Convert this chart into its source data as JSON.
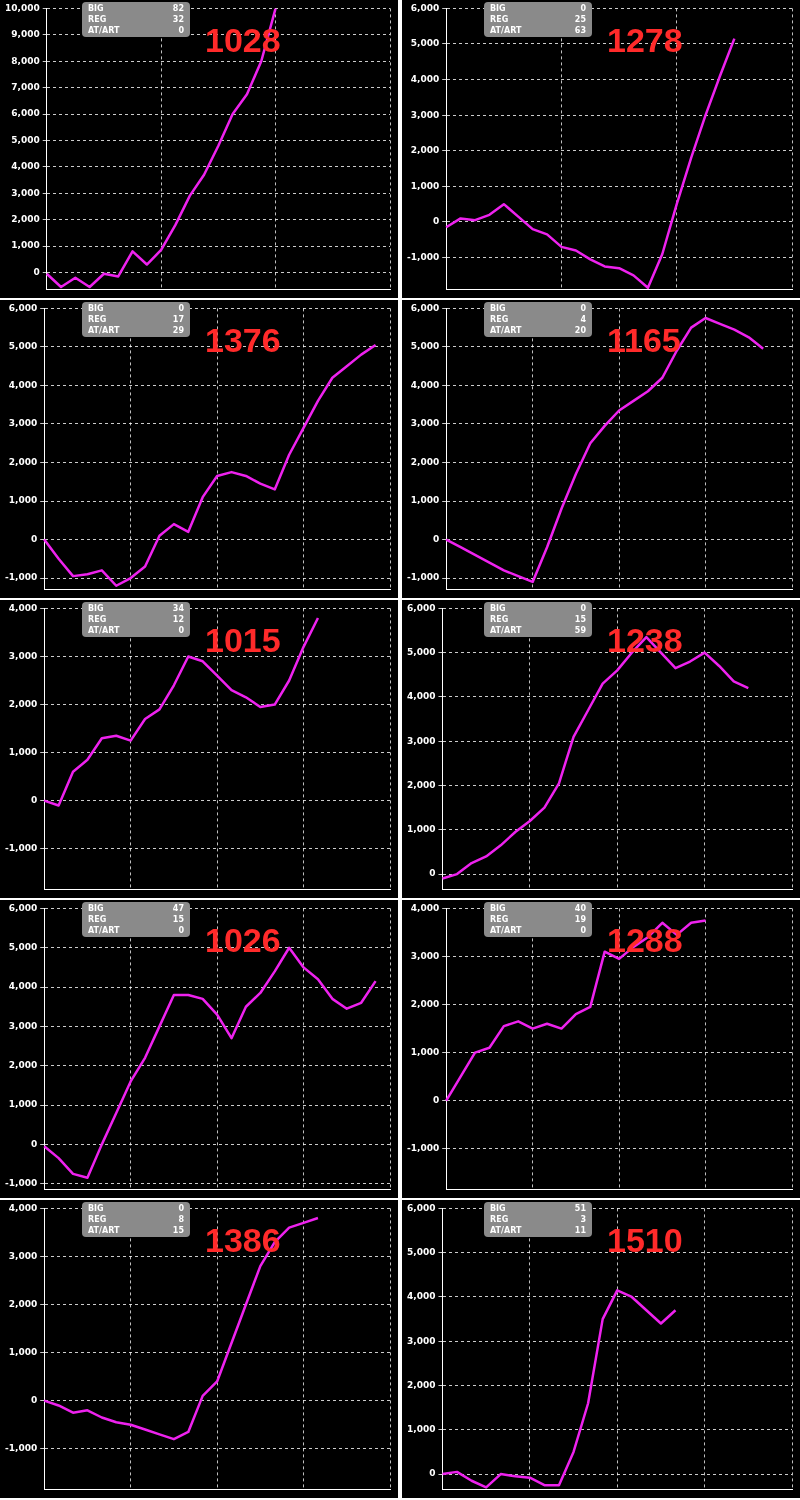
{
  "chart_data": [
    {
      "type": "line",
      "title": "1028",
      "annotations": [
        "BIG",
        "82",
        "REG",
        "32",
        "AT/ART",
        "0"
      ],
      "categories": [
        null,
        null,
        null,
        null,
        null,
        null,
        null,
        null,
        null,
        null,
        null,
        null,
        null,
        null,
        null,
        null,
        null,
        null,
        null,
        null,
        null,
        null,
        null,
        null,
        null
      ],
      "series": [
        {
          "color": "#ee22ee",
          "values": [
            -50,
            -550,
            -200,
            -550,
            -50,
            -150,
            800,
            300,
            850,
            1800,
            2900,
            3700,
            4800,
            6000,
            6750,
            8000,
            10000,
            null,
            null,
            null,
            null,
            null,
            null,
            null,
            null
          ]
        }
      ],
      "ylim": [
        -650,
        10000
      ],
      "yticks": [
        {
          "value": 0,
          "label": "0"
        },
        {
          "value": 1000,
          "label": "1,000"
        },
        {
          "value": 2000,
          "label": "2,000"
        },
        {
          "value": 3000,
          "label": "3,000"
        },
        {
          "value": 4000,
          "label": "4,000"
        },
        {
          "value": 5000,
          "label": "5,000"
        },
        {
          "value": 6000,
          "label": "6,000"
        },
        {
          "value": 7000,
          "label": "7,000"
        },
        {
          "value": 8000,
          "label": "8,000"
        },
        {
          "value": 9000,
          "label": "9,000"
        },
        {
          "value": 10000,
          "label": "10,000"
        }
      ],
      "grid": true,
      "legend": false,
      "marker": "none",
      "tick_labels": "y"
    },
    {
      "type": "line",
      "title": "1278",
      "annotations": [
        "BIG",
        "0",
        "REG",
        "25",
        "AT/ART",
        "63"
      ],
      "categories": [
        null,
        null,
        null,
        null,
        null,
        null,
        null,
        null,
        null,
        null,
        null,
        null,
        null,
        null,
        null,
        null,
        null,
        null,
        null,
        null,
        null,
        null,
        null,
        null,
        null
      ],
      "series": [
        {
          "color": "#ee22ee",
          "values": [
            -150,
            100,
            50,
            200,
            500,
            150,
            -200,
            -350,
            -700,
            -800,
            -1050,
            -1250,
            -1300,
            -1500,
            -1850,
            -900,
            500,
            1800,
            3000,
            4100,
            5150,
            null,
            null,
            null,
            null
          ]
        }
      ],
      "ylim": [
        -1900,
        6000
      ],
      "yticks": [
        {
          "value": -1000,
          "label": "-1,000"
        },
        {
          "value": 0,
          "label": "0"
        },
        {
          "value": 1000,
          "label": "1,000"
        },
        {
          "value": 2000,
          "label": "2,000"
        },
        {
          "value": 3000,
          "label": "3,000"
        },
        {
          "value": 4000,
          "label": "4,000"
        },
        {
          "value": 5000,
          "label": "5,000"
        },
        {
          "value": 6000,
          "label": "6,000"
        }
      ],
      "grid": true,
      "legend": false,
      "marker": "none",
      "tick_labels": "y"
    },
    {
      "type": "line",
      "title": "1376",
      "annotations": [
        "BIG",
        "0",
        "REG",
        "17",
        "AT/ART",
        "29"
      ],
      "categories": [
        null,
        null,
        null,
        null,
        null,
        null,
        null,
        null,
        null,
        null,
        null,
        null,
        null,
        null,
        null,
        null,
        null,
        null,
        null,
        null,
        null,
        null,
        null,
        null,
        null
      ],
      "series": [
        {
          "color": "#ee22ee",
          "values": [
            0,
            -500,
            -950,
            -900,
            -800,
            -1200,
            -1000,
            -700,
            100,
            400,
            200,
            1100,
            1650,
            1750,
            1650,
            1450,
            1300,
            2200,
            2900,
            3600,
            4200,
            4500,
            4800,
            5050,
            null
          ]
        }
      ],
      "ylim": [
        -1300,
        6000
      ],
      "yticks": [
        {
          "value": -1000,
          "label": "-1,000"
        },
        {
          "value": 0,
          "label": "0"
        },
        {
          "value": 1000,
          "label": "1,000"
        },
        {
          "value": 2000,
          "label": "2,000"
        },
        {
          "value": 3000,
          "label": "3,000"
        },
        {
          "value": 4000,
          "label": "4,000"
        },
        {
          "value": 5000,
          "label": "5,000"
        },
        {
          "value": 6000,
          "label": "6,000"
        }
      ],
      "grid": true,
      "legend": false,
      "marker": "none",
      "tick_labels": "y"
    },
    {
      "type": "line",
      "title": "1165",
      "annotations": [
        "BIG",
        "0",
        "REG",
        "4",
        "AT/ART",
        "20"
      ],
      "categories": [
        null,
        null,
        null,
        null,
        null,
        null,
        null,
        null,
        null,
        null,
        null,
        null,
        null,
        null,
        null,
        null,
        null,
        null,
        null,
        null,
        null,
        null,
        null,
        null,
        null
      ],
      "series": [
        {
          "color": "#ee22ee",
          "values": [
            0,
            -200,
            -400,
            -600,
            -800,
            -950,
            -1100,
            -200,
            800,
            1700,
            2500,
            2950,
            3350,
            3600,
            3850,
            4200,
            4900,
            5500,
            5750,
            5600,
            5450,
            5250,
            4950,
            null,
            null
          ]
        }
      ],
      "ylim": [
        -1300,
        6000
      ],
      "yticks": [
        {
          "value": -1000,
          "label": "-1,000"
        },
        {
          "value": 0,
          "label": "0"
        },
        {
          "value": 1000,
          "label": "1,000"
        },
        {
          "value": 2000,
          "label": "2,000"
        },
        {
          "value": 3000,
          "label": "3,000"
        },
        {
          "value": 4000,
          "label": "4,000"
        },
        {
          "value": 5000,
          "label": "5,000"
        },
        {
          "value": 6000,
          "label": "6,000"
        }
      ],
      "grid": true,
      "legend": false,
      "marker": "none",
      "tick_labels": "y"
    },
    {
      "type": "line",
      "title": "1015",
      "annotations": [
        "BIG",
        "34",
        "REG",
        "12",
        "AT/ART",
        "0"
      ],
      "categories": [
        null,
        null,
        null,
        null,
        null,
        null,
        null,
        null,
        null,
        null,
        null,
        null,
        null,
        null,
        null,
        null,
        null,
        null,
        null,
        null,
        null,
        null,
        null,
        null,
        null
      ],
      "series": [
        {
          "color": "#ee22ee",
          "values": [
            0,
            -100,
            600,
            850,
            1300,
            1350,
            1250,
            1700,
            1900,
            2400,
            3000,
            2900,
            2600,
            2300,
            2150,
            1950,
            2000,
            2500,
            3200,
            3800,
            null,
            null,
            null,
            null,
            null
          ]
        }
      ],
      "ylim": [
        -1850,
        4000
      ],
      "yticks": [
        {
          "value": -1000,
          "label": "-1,000"
        },
        {
          "value": 0,
          "label": "0"
        },
        {
          "value": 1000,
          "label": "1,000"
        },
        {
          "value": 2000,
          "label": "2,000"
        },
        {
          "value": 3000,
          "label": "3,000"
        },
        {
          "value": 4000,
          "label": "4,000"
        }
      ],
      "grid": true,
      "legend": false,
      "marker": "none",
      "tick_labels": "y"
    },
    {
      "type": "line",
      "title": "1238",
      "annotations": [
        "BIG",
        "0",
        "REG",
        "15",
        "AT/ART",
        "59"
      ],
      "categories": [
        null,
        null,
        null,
        null,
        null,
        null,
        null,
        null,
        null,
        null,
        null,
        null,
        null,
        null,
        null,
        null,
        null,
        null,
        null,
        null,
        null,
        null,
        null,
        null,
        null
      ],
      "series": [
        {
          "color": "#ee22ee",
          "values": [
            -100,
            0,
            250,
            400,
            650,
            950,
            1200,
            1500,
            2050,
            3100,
            3700,
            4300,
            4600,
            5000,
            5350,
            5000,
            4650,
            4800,
            5000,
            4700,
            4350,
            4200,
            null,
            null,
            null
          ]
        }
      ],
      "ylim": [
        -350,
        6000
      ],
      "yticks": [
        {
          "value": 0,
          "label": "0"
        },
        {
          "value": 1000,
          "label": "1,000"
        },
        {
          "value": 2000,
          "label": "2,000"
        },
        {
          "value": 3000,
          "label": "3,000"
        },
        {
          "value": 4000,
          "label": "4,000"
        },
        {
          "value": 5000,
          "label": "5,000"
        },
        {
          "value": 6000,
          "label": "6,000"
        }
      ],
      "grid": true,
      "legend": false,
      "marker": "none",
      "tick_labels": "y"
    },
    {
      "type": "line",
      "title": "1026",
      "annotations": [
        "BIG",
        "47",
        "REG",
        "15",
        "AT/ART",
        "0"
      ],
      "categories": [
        null,
        null,
        null,
        null,
        null,
        null,
        null,
        null,
        null,
        null,
        null,
        null,
        null,
        null,
        null,
        null,
        null,
        null,
        null,
        null,
        null,
        null,
        null,
        null,
        null
      ],
      "series": [
        {
          "color": "#ee22ee",
          "values": [
            -50,
            -350,
            -750,
            -850,
            0,
            800,
            1600,
            2200,
            3000,
            3800,
            3800,
            3700,
            3300,
            2700,
            3500,
            3850,
            4400,
            5000,
            4500,
            4200,
            3700,
            3450,
            3600,
            4150,
            null
          ]
        }
      ],
      "ylim": [
        -1150,
        6000
      ],
      "yticks": [
        {
          "value": -1000,
          "label": "-1,000"
        },
        {
          "value": 0,
          "label": "0"
        },
        {
          "value": 1000,
          "label": "1,000"
        },
        {
          "value": 2000,
          "label": "2,000"
        },
        {
          "value": 3000,
          "label": "3,000"
        },
        {
          "value": 4000,
          "label": "4,000"
        },
        {
          "value": 5000,
          "label": "5,000"
        },
        {
          "value": 6000,
          "label": "6,000"
        }
      ],
      "grid": true,
      "legend": false,
      "marker": "none",
      "tick_labels": "y"
    },
    {
      "type": "line",
      "title": "1288",
      "annotations": [
        "BIG",
        "40",
        "REG",
        "19",
        "AT/ART",
        "0"
      ],
      "categories": [
        null,
        null,
        null,
        null,
        null,
        null,
        null,
        null,
        null,
        null,
        null,
        null,
        null,
        null,
        null,
        null,
        null,
        null,
        null,
        null,
        null,
        null,
        null,
        null,
        null
      ],
      "series": [
        {
          "color": "#ee22ee",
          "values": [
            0,
            500,
            1000,
            1100,
            1550,
            1650,
            1500,
            1600,
            1500,
            1800,
            1950,
            3100,
            2950,
            3200,
            3400,
            3700,
            3450,
            3700,
            3750,
            null,
            null,
            null,
            null,
            null,
            null
          ]
        }
      ],
      "ylim": [
        -1850,
        4000
      ],
      "yticks": [
        {
          "value": -1000,
          "label": "-1,000"
        },
        {
          "value": 0,
          "label": "0"
        },
        {
          "value": 1000,
          "label": "1,000"
        },
        {
          "value": 2000,
          "label": "2,000"
        },
        {
          "value": 3000,
          "label": "3,000"
        },
        {
          "value": 4000,
          "label": "4,000"
        }
      ],
      "grid": true,
      "legend": false,
      "marker": "none",
      "tick_labels": "y"
    },
    {
      "type": "line",
      "title": "1386",
      "annotations": [
        "BIG",
        "0",
        "REG",
        "8",
        "AT/ART",
        "15"
      ],
      "categories": [
        null,
        null,
        null,
        null,
        null,
        null,
        null,
        null,
        null,
        null,
        null,
        null,
        null,
        null,
        null,
        null,
        null,
        null,
        null,
        null,
        null,
        null,
        null,
        null,
        null
      ],
      "series": [
        {
          "color": "#ee22ee",
          "values": [
            0,
            -100,
            -250,
            -200,
            -350,
            -450,
            -500,
            -600,
            -700,
            -800,
            -650,
            100,
            400,
            1200,
            2000,
            2800,
            3300,
            3600,
            3700,
            3800,
            null,
            null,
            null,
            null,
            null
          ]
        }
      ],
      "ylim": [
        -1850,
        4000
      ],
      "yticks": [
        {
          "value": -1000,
          "label": "-1,000"
        },
        {
          "value": 0,
          "label": "0"
        },
        {
          "value": 1000,
          "label": "1,000"
        },
        {
          "value": 2000,
          "label": "2,000"
        },
        {
          "value": 3000,
          "label": "3,000"
        },
        {
          "value": 4000,
          "label": "4,000"
        }
      ],
      "grid": true,
      "legend": false,
      "marker": "none",
      "tick_labels": "y"
    },
    {
      "type": "line",
      "title": "1510",
      "annotations": [
        "BIG",
        "51",
        "REG",
        "3",
        "AT/ART",
        "11"
      ],
      "categories": [
        null,
        null,
        null,
        null,
        null,
        null,
        null,
        null,
        null,
        null,
        null,
        null,
        null,
        null,
        null,
        null,
        null,
        null,
        null,
        null,
        null,
        null,
        null,
        null,
        null
      ],
      "series": [
        {
          "color": "#ee22ee",
          "values": [
            0,
            50,
            -150,
            -300,
            0,
            -50,
            -80,
            -250,
            -250,
            500,
            1600,
            3500,
            4150,
            4000,
            3700,
            3400,
            3700,
            null,
            null,
            null,
            null,
            null,
            null,
            null,
            null
          ]
        }
      ],
      "ylim": [
        -350,
        6000
      ],
      "yticks": [
        {
          "value": 0,
          "label": "0"
        },
        {
          "value": 1000,
          "label": "1,000"
        },
        {
          "value": 2000,
          "label": "2,000"
        },
        {
          "value": 3000,
          "label": "3,000"
        },
        {
          "value": 4000,
          "label": "4,000"
        },
        {
          "value": 5000,
          "label": "5,000"
        },
        {
          "value": 6000,
          "label": "6,000"
        }
      ],
      "grid": true,
      "legend": false,
      "marker": "none",
      "tick_labels": "y"
    }
  ]
}
